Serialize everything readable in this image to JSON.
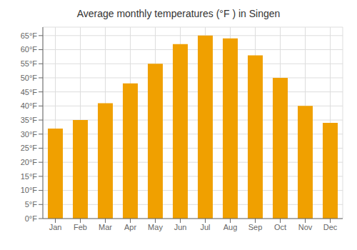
{
  "chart_data": {
    "type": "bar",
    "title": "Average monthly temperatures (°F ) in Singen",
    "categories": [
      "Jan",
      "Feb",
      "Mar",
      "Apr",
      "May",
      "Jun",
      "Jul",
      "Aug",
      "Sep",
      "Oct",
      "Nov",
      "Dec"
    ],
    "values": [
      32,
      35,
      41,
      48,
      55,
      62,
      65,
      64,
      58,
      50,
      40,
      34
    ],
    "color": "#F0A000",
    "ylim": [
      0,
      68
    ],
    "yticks": [
      {
        "value": 0,
        "label": "0°F"
      },
      {
        "value": 5,
        "label": "5°F"
      },
      {
        "value": 10,
        "label": "10°F"
      },
      {
        "value": 15,
        "label": "15°F"
      },
      {
        "value": 20,
        "label": "20°F"
      },
      {
        "value": 25,
        "label": "25°F"
      },
      {
        "value": 30,
        "label": "30°F"
      },
      {
        "value": 35,
        "label": "35°F"
      },
      {
        "value": 40,
        "label": "40°F"
      },
      {
        "value": 45,
        "label": "45°F"
      },
      {
        "value": 50,
        "label": "50°F"
      },
      {
        "value": 55,
        "label": "55°F"
      },
      {
        "value": 60,
        "label": "60°F"
      },
      {
        "value": 65,
        "label": "65°F"
      }
    ],
    "grid": true
  }
}
